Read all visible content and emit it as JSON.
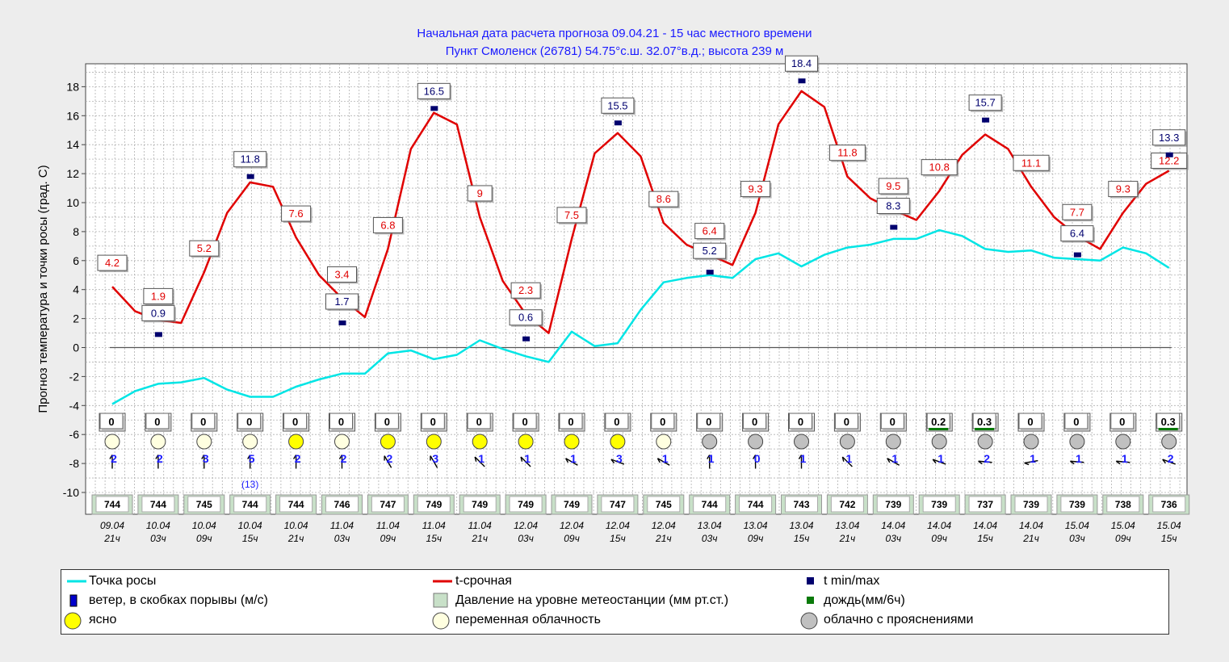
{
  "title": "Начальная дата расчета прогноза 09.04.21 - 15 час местного времени",
  "subtitle": "Пункт  Смоленск (26781)   54.75°с.ш.  32.07°в.д.; высота 239 м",
  "colors": {
    "temp": "#e00000",
    "dew": "#00e5e5",
    "minmax": "#00006e",
    "title": "#1a1aff"
  },
  "chart_data": {
    "type": "line",
    "ylabel": "Прогноз температура и точки росы (град. С)",
    "ylim": [
      -11,
      19
    ],
    "yticks": [
      18,
      16,
      14,
      12,
      10,
      8,
      6,
      4,
      2,
      0,
      -2,
      -4,
      -6,
      -8,
      -10
    ],
    "categories": [
      [
        "09.04",
        "21ч"
      ],
      [
        "10.04",
        "03ч"
      ],
      [
        "10.04",
        "09ч"
      ],
      [
        "10.04",
        "15ч"
      ],
      [
        "10.04",
        "21ч"
      ],
      [
        "11.04",
        "03ч"
      ],
      [
        "11.04",
        "09ч"
      ],
      [
        "11.04",
        "15ч"
      ],
      [
        "11.04",
        "21ч"
      ],
      [
        "12.04",
        "03ч"
      ],
      [
        "12.04",
        "09ч"
      ],
      [
        "12.04",
        "15ч"
      ],
      [
        "12.04",
        "21ч"
      ],
      [
        "13.04",
        "03ч"
      ],
      [
        "13.04",
        "09ч"
      ],
      [
        "13.04",
        "15ч"
      ],
      [
        "13.04",
        "21ч"
      ],
      [
        "14.04",
        "03ч"
      ],
      [
        "14.04",
        "09ч"
      ],
      [
        "14.04",
        "15ч"
      ],
      [
        "14.04",
        "21ч"
      ],
      [
        "15.04",
        "03ч"
      ],
      [
        "15.04",
        "09ч"
      ],
      [
        "15.04",
        "15ч"
      ]
    ],
    "series": [
      {
        "name": "t-срочная",
        "x": [
          0,
          0.5,
          1,
          1.5,
          2,
          2.5,
          3,
          3.5,
          4,
          4.5,
          5,
          5.5,
          6,
          6.5,
          7,
          7.5,
          8,
          8.5,
          9,
          9.5,
          10,
          10.5,
          11,
          11.5,
          12,
          12.5,
          13,
          13.5,
          14,
          14.5,
          15,
          15.5,
          16,
          16.5,
          17,
          17.5,
          18,
          18.5,
          19,
          19.5,
          20,
          20.5,
          21,
          21.5,
          22,
          22.5,
          23
        ],
        "values": [
          4.2,
          2.5,
          1.9,
          1.7,
          5.2,
          9.3,
          11.4,
          11.1,
          7.6,
          5.0,
          3.4,
          2.1,
          6.8,
          13.7,
          16.2,
          15.4,
          9.0,
          4.6,
          2.3,
          1.0,
          7.5,
          13.4,
          14.8,
          13.2,
          8.6,
          7.1,
          6.4,
          5.7,
          9.3,
          15.4,
          17.7,
          16.6,
          11.8,
          10.3,
          9.5,
          8.8,
          10.8,
          13.3,
          14.7,
          13.7,
          11.1,
          9.0,
          7.7,
          6.8,
          9.3,
          11.3,
          12.2
        ]
      },
      {
        "name": "Точка росы",
        "x": [
          0,
          0.5,
          1,
          1.5,
          2,
          2.5,
          3,
          3.5,
          4,
          4.5,
          5,
          5.5,
          6,
          6.5,
          7,
          7.5,
          8,
          8.5,
          9,
          9.5,
          10,
          10.5,
          11,
          11.5,
          12,
          12.5,
          13,
          13.5,
          14,
          14.5,
          15,
          15.5,
          16,
          16.5,
          17,
          17.5,
          18,
          18.5,
          19,
          19.5,
          20,
          20.5,
          21,
          21.5,
          22,
          22.5,
          23
        ],
        "values": [
          -3.9,
          -3.0,
          -2.5,
          -2.4,
          -2.1,
          -2.9,
          -3.4,
          -3.4,
          -2.7,
          -2.2,
          -1.8,
          -1.8,
          -0.4,
          -0.2,
          -0.8,
          -0.5,
          0.5,
          -0.1,
          -0.6,
          -1.0,
          1.1,
          0.1,
          0.3,
          2.6,
          4.5,
          4.8,
          5.0,
          4.8,
          6.1,
          6.5,
          5.6,
          6.4,
          6.9,
          7.1,
          7.5,
          7.5,
          8.1,
          7.7,
          6.8,
          6.6,
          6.7,
          6.2,
          6.1,
          6.0,
          6.9,
          6.5,
          5.5
        ]
      }
    ],
    "temp_labels": [
      {
        "x": 0,
        "t": 4.2,
        "text": "4.2"
      },
      {
        "x": 1,
        "t": 1.9,
        "text": "1.9"
      },
      {
        "x": 2,
        "t": 5.2,
        "text": "5.2"
      },
      {
        "x": 4,
        "t": 7.6,
        "text": "7.6"
      },
      {
        "x": 5,
        "t": 3.4,
        "text": "3.4"
      },
      {
        "x": 6,
        "t": 6.8,
        "text": "6.8"
      },
      {
        "x": 8,
        "t": 9.0,
        "text": "9"
      },
      {
        "x": 9,
        "t": 2.3,
        "text": "2.3"
      },
      {
        "x": 10,
        "t": 7.5,
        "text": "7.5"
      },
      {
        "x": 12,
        "t": 8.6,
        "text": "8.6"
      },
      {
        "x": 13,
        "t": 6.4,
        "text": "6.4"
      },
      {
        "x": 14,
        "t": 9.3,
        "text": "9.3"
      },
      {
        "x": 16,
        "t": 11.8,
        "text": "11.8"
      },
      {
        "x": 17,
        "t": 9.5,
        "text": "9.5"
      },
      {
        "x": 18,
        "t": 10.8,
        "text": "10.8"
      },
      {
        "x": 20,
        "t": 11.1,
        "text": "11.1"
      },
      {
        "x": 21,
        "t": 7.7,
        "text": "7.7"
      },
      {
        "x": 22,
        "t": 9.3,
        "text": "9.3"
      },
      {
        "x": 23,
        "t": 12.2,
        "text": "12.2"
      }
    ],
    "minmax": [
      {
        "x": 1,
        "t": 0.9,
        "text": "0.9"
      },
      {
        "x": 3,
        "t": 11.8,
        "text": "11.8"
      },
      {
        "x": 5,
        "t": 1.7,
        "text": "1.7"
      },
      {
        "x": 7,
        "t": 16.5,
        "text": "16.5"
      },
      {
        "x": 9,
        "t": 0.6,
        "text": "0.6"
      },
      {
        "x": 11,
        "t": 15.5,
        "text": "15.5"
      },
      {
        "x": 13,
        "t": 5.2,
        "text": "5.2"
      },
      {
        "x": 15,
        "t": 18.4,
        "text": "18.4"
      },
      {
        "x": 17,
        "t": 8.3,
        "text": "8.3"
      },
      {
        "x": 19,
        "t": 15.7,
        "text": "15.7"
      },
      {
        "x": 21,
        "t": 6.4,
        "text": "6.4"
      },
      {
        "x": 23,
        "t": 13.3,
        "text": "13.3"
      }
    ],
    "precip": [
      "0",
      "0",
      "0",
      "0",
      "0",
      "0",
      "0",
      "0",
      "0",
      "0",
      "0",
      "0",
      "0",
      "0",
      "0",
      "0",
      "0",
      "0",
      "0.2",
      "0.3",
      "0",
      "0",
      "0",
      "0.3"
    ],
    "cloud": [
      "partly",
      "partly",
      "partly",
      "partly",
      "clear",
      "partly",
      "clear",
      "clear",
      "clear",
      "clear",
      "clear",
      "clear",
      "partly",
      "cloudy",
      "cloudy",
      "cloudy",
      "cloudy",
      "cloudy",
      "cloudy",
      "cloudy",
      "cloudy",
      "cloudy",
      "cloudy",
      "cloudy"
    ],
    "wind_speed": [
      "2",
      "2",
      "3",
      "5",
      "2",
      "2",
      "2",
      "3",
      "1",
      "1",
      "1",
      "3",
      "1",
      "1",
      "0",
      "1",
      "1",
      "1",
      "1",
      "2",
      "1",
      "1",
      "1",
      "2"
    ],
    "wind_dir_deg": [
      0,
      0,
      0,
      0,
      0,
      0,
      330,
      330,
      315,
      315,
      300,
      290,
      300,
      0,
      0,
      0,
      315,
      300,
      290,
      275,
      260,
      275,
      275,
      290
    ],
    "gust": [
      {
        "x": 3,
        "text": "(13)"
      }
    ],
    "pressure": [
      "744",
      "744",
      "745",
      "744",
      "744",
      "746",
      "747",
      "749",
      "749",
      "749",
      "749",
      "747",
      "745",
      "744",
      "744",
      "743",
      "742",
      "739",
      "739",
      "737",
      "739",
      "739",
      "738",
      "736"
    ]
  },
  "legend": {
    "dew": "Точка росы",
    "temp": "t-срочная",
    "minmax": "t min/max",
    "wind": "ветер, в скобках порывы (м/с)",
    "pressure": "Давление на уровне метеостанции (мм рт.ст.)",
    "rain": "дождь(мм/6ч)",
    "clear": "ясно",
    "partly": "переменная облачность",
    "cloudy": "облачно с прояснениями"
  }
}
